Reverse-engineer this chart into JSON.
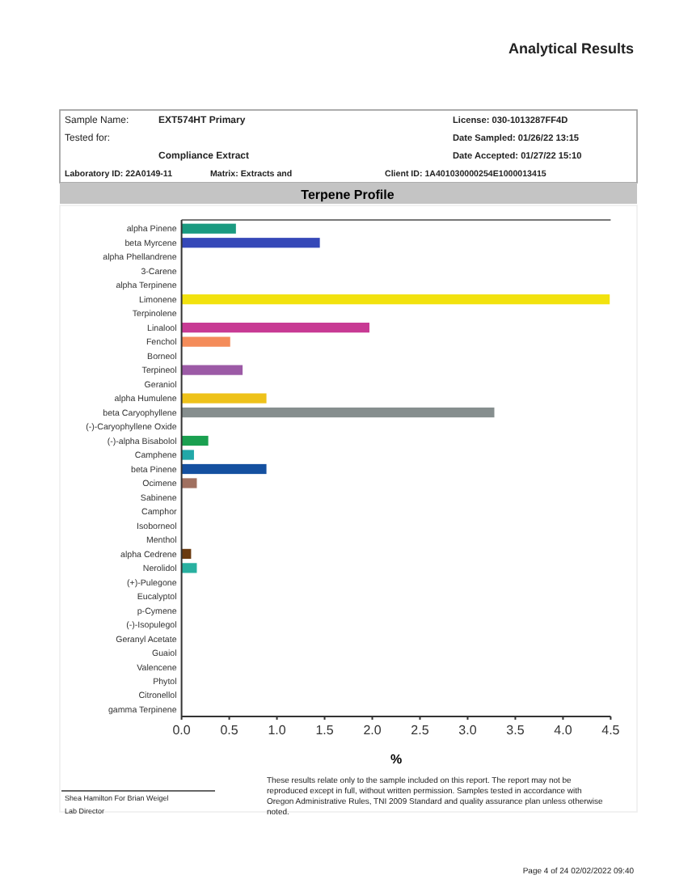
{
  "chart_data": {
    "type": "bar",
    "orientation": "horizontal",
    "title": "Terpene Profile",
    "xlabel": "%",
    "categories": [
      "alpha Pinene",
      "beta Myrcene",
      "alpha Phellandrene",
      "3-Carene",
      "alpha Terpinene",
      "Limonene",
      "Terpinolene",
      "Linalool",
      "Fenchol",
      "Borneol",
      "Terpineol",
      "Geraniol",
      "alpha Humulene",
      "beta Caryophyllene",
      "(-)-Caryophyllene Oxide",
      "(-)-alpha Bisabolol",
      "Camphene",
      "beta Pinene",
      "Ocimene",
      "Sabinene",
      "Camphor",
      "Isoborneol",
      "Menthol",
      "alpha Cedrene",
      "Nerolidol",
      "(+)-Pulegone",
      "Eucalyptol",
      "p-Cymene",
      "(-)-Isopulegol",
      "Geranyl Acetate",
      "Guaiol",
      "Valencene",
      "Phytol",
      "Citronellol",
      "gamma Terpinene"
    ],
    "values": [
      0.57,
      1.45,
      0,
      0,
      0,
      4.49,
      0,
      1.97,
      0.51,
      0,
      0.64,
      0,
      0.89,
      3.28,
      0,
      0.28,
      0.13,
      0.89,
      0.16,
      0,
      0,
      0,
      0,
      0.1,
      0.16,
      0,
      0,
      0,
      0,
      0,
      0,
      0,
      0,
      0,
      0
    ],
    "colors": [
      "#1a9a80",
      "#3548b8",
      "#808080",
      "#808080",
      "#808080",
      "#f2e20e",
      "#808080",
      "#c83a94",
      "#f48c5a",
      "#808080",
      "#9c5aa6",
      "#808080",
      "#eec21a",
      "#868e8e",
      "#808080",
      "#1aa050",
      "#22a8a8",
      "#1450a0",
      "#a07060",
      "#808080",
      "#808080",
      "#808080",
      "#808080",
      "#6a3a10",
      "#28b0a0",
      "#808080",
      "#808080",
      "#808080",
      "#808080",
      "#808080",
      "#808080",
      "#808080",
      "#808080",
      "#808080",
      "#808080"
    ],
    "xlim": [
      0,
      4.5
    ],
    "xticks": [
      {
        "value": 0,
        "label": "0.0"
      },
      {
        "value": 0.5,
        "label": "0.5"
      },
      {
        "value": 1,
        "label": "1.0"
      },
      {
        "value": 1.5,
        "label": "1.5"
      },
      {
        "value": 2,
        "label": "2.0"
      },
      {
        "value": 2.5,
        "label": "2.5"
      },
      {
        "value": 3,
        "label": "3.0"
      },
      {
        "value": 3.5,
        "label": "3.5"
      },
      {
        "value": 4,
        "label": "4.0"
      },
      {
        "value": 4.5,
        "label": "4.5"
      }
    ],
    "grid": false,
    "annotations": [
      "Analytical Results",
      "Sample Name:",
      "EXT574HT Primary",
      "Tested for:",
      "Compliance Extract",
      "Laboratory ID: 22A0149-11",
      "Matrix:  Extracts and",
      "License: 030-1013287FF4D",
      "Date  Sampled:  01/26/22  13:15",
      "Date Accepted:  01/27/22  15:10",
      "Client ID: 1A401030000254E1000013415",
      "Shea Hamilton For Brian Weigel",
      "Lab Director",
      "These results relate only to the sample included on this report. The report may not be reproduced except in full, without written permission. Samples tested in accordance with Oregon Administrative Rules, TNI 2009 Standard and quality assurance plan unless otherwise noted.",
      "Page 4 of 24  02/02/2022 09:40"
    ]
  }
}
